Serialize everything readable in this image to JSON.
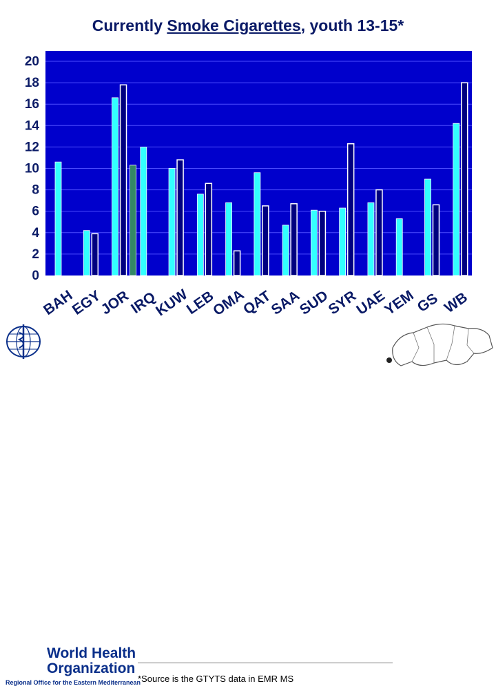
{
  "title": {
    "prefix": "Currently ",
    "underlined": "Smoke Cigarettes",
    "suffix": ", youth 13-15*"
  },
  "footer": {
    "logo_line1": "World Health",
    "logo_line2": "Organization",
    "logo_sub": "Regional Office for the Eastern Mediterranean",
    "source": "*Source is the GTYTS data in EMR MS"
  },
  "colors": {
    "plot_bg": "#0000cc",
    "grid": "#4d4dff",
    "series1": "#33ffff",
    "series2": "#000080",
    "jor_special": "#338866",
    "text": "#0a1a66"
  },
  "chart_data": {
    "type": "bar",
    "categories": [
      "BAH",
      "EGY",
      "JOR",
      "IRQ",
      "KUW",
      "LEB",
      "OMA",
      "QAT",
      "SAA",
      "SUD",
      "SYR",
      "UAE",
      "YEM",
      "GS",
      "WB"
    ],
    "ylim": [
      0,
      20
    ],
    "yticks": [
      0,
      2,
      4,
      6,
      8,
      10,
      12,
      14,
      16,
      18,
      20
    ],
    "grid": true,
    "series": [
      {
        "values": [
          10.6,
          4.2,
          16.6,
          12.0,
          10.0,
          7.6,
          6.8,
          9.6,
          4.7,
          6.1,
          6.3,
          6.8,
          5.3,
          9.0,
          14.2
        ]
      },
      {
        "values": [
          null,
          3.9,
          17.8,
          null,
          10.8,
          8.6,
          2.3,
          6.5,
          6.7,
          6.0,
          12.3,
          8.0,
          null,
          6.6,
          18.0
        ]
      }
    ],
    "special_bars": [
      {
        "category": "JOR",
        "value": 10.3
      }
    ]
  }
}
